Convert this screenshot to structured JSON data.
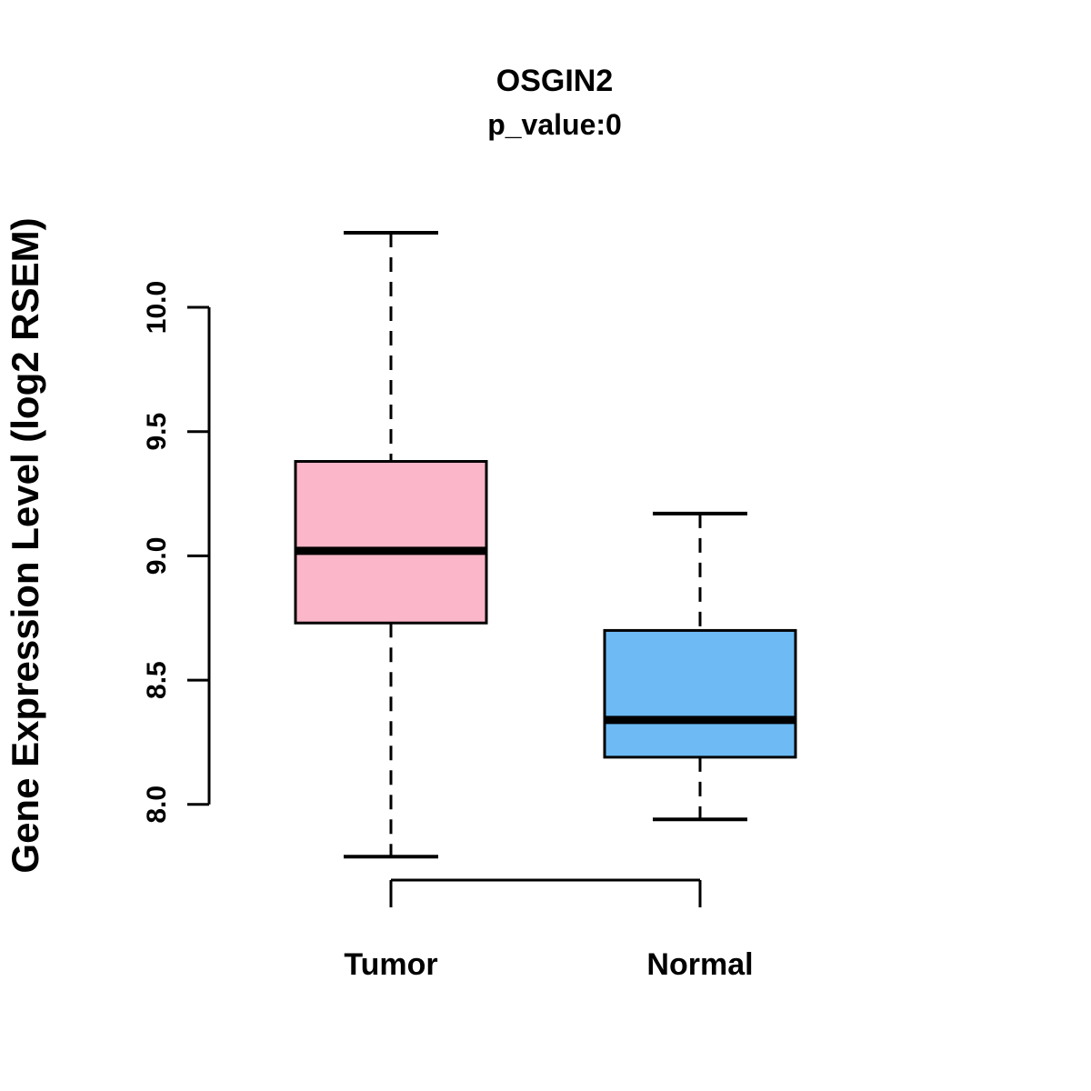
{
  "chart_data": {
    "type": "boxplot",
    "title": "OSGIN2",
    "subtitle": "p_value:0",
    "ylabel": "Gene Expression Level (log2 RSEM)",
    "xlabel": "",
    "yticks": [
      8.0,
      8.5,
      9.0,
      9.5,
      10.0
    ],
    "ylim": [
      7.7,
      10.35
    ],
    "grid": false,
    "categories": [
      "Tumor",
      "Normal"
    ],
    "groups": [
      {
        "label": "Tumor",
        "color": "#FBB6C9",
        "lower_whisker": 7.79,
        "q1": 8.73,
        "median": 9.02,
        "q3": 9.38,
        "upper_whisker": 10.3
      },
      {
        "label": "Normal",
        "color": "#6DBAF5",
        "lower_whisker": 7.94,
        "q1": 8.19,
        "median": 8.34,
        "q3": 8.7,
        "upper_whisker": 9.17
      }
    ],
    "colors": {
      "box_stroke": "#000000",
      "axis": "#000000",
      "tumor_fill": "#FBB6C9",
      "normal_fill": "#6DBAF5"
    }
  }
}
